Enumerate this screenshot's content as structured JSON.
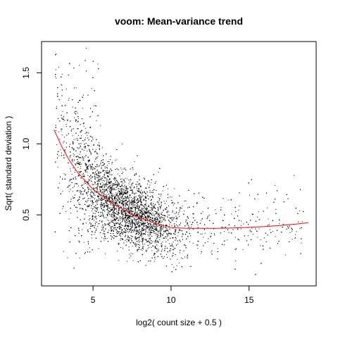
{
  "chart_data": {
    "type": "scatter",
    "title": "voom: Mean-variance trend",
    "xlabel": "log2( count size + 0.5 )",
    "ylabel": "Sqrt( standard deviation )",
    "xlim": [
      1.7,
      19.3
    ],
    "ylim": [
      0.0,
      1.72
    ],
    "x_ticks": [
      5,
      10,
      15
    ],
    "x_tick_labels": [
      "5",
      "10",
      "15"
    ],
    "y_ticks": [
      0.5,
      1.0,
      1.5
    ],
    "y_tick_labels": [
      "0.5",
      "1.0",
      "1.5"
    ],
    "grid": false,
    "legend": "none",
    "point_color": "#000000",
    "trend_color": "#ff0000",
    "trend": {
      "x": [
        2.5,
        3.0,
        3.5,
        4.0,
        4.5,
        5.0,
        5.5,
        6.0,
        6.5,
        7.0,
        7.5,
        8.0,
        8.5,
        9.0,
        9.5,
        10.0,
        11.0,
        12.0,
        13.0,
        14.0,
        15.0,
        16.0,
        17.0,
        18.0,
        18.8
      ],
      "y": [
        1.1,
        0.98,
        0.88,
        0.8,
        0.74,
        0.68,
        0.64,
        0.6,
        0.565,
        0.535,
        0.505,
        0.48,
        0.46,
        0.44,
        0.425,
        0.41,
        0.405,
        0.405,
        0.405,
        0.408,
        0.412,
        0.418,
        0.425,
        0.435,
        0.445
      ]
    },
    "points_description": "dense cloud of gene-wise points concentrated between x=4 and x=11, y=0.2 to 1.0, with sparse points up to y≈1.65 near x≈4-5 and a sparse tail to x≈18"
  }
}
